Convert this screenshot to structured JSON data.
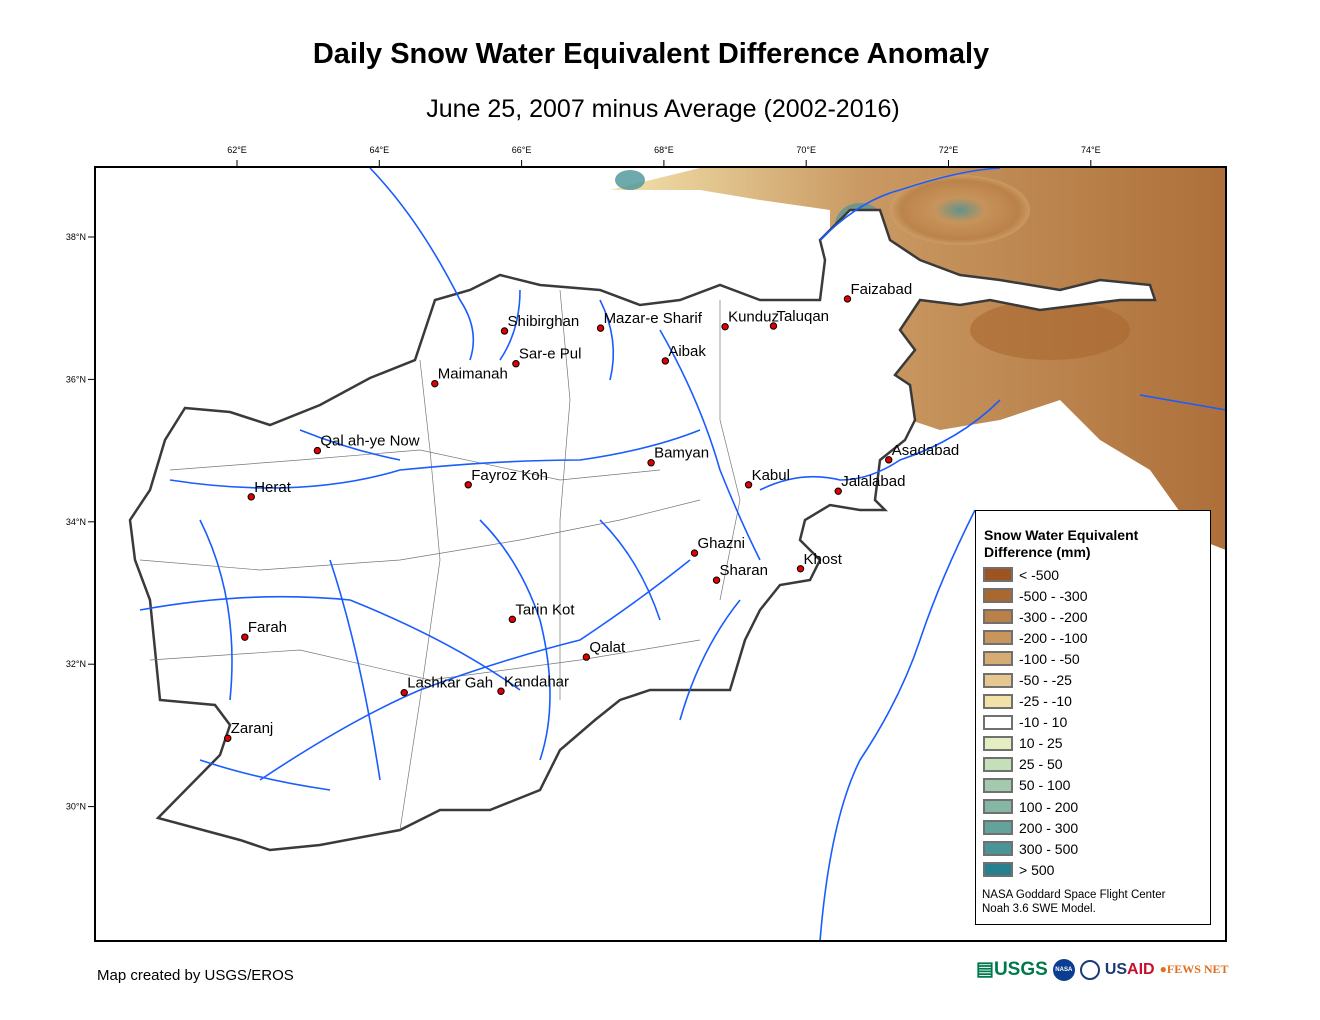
{
  "title": "Daily Snow Water Equivalent Difference Anomaly",
  "subtitle": "June 25, 2007 minus Average (2002-2016)",
  "axes": {
    "longitude_ticks": [
      {
        "value": 62,
        "label": "62°E"
      },
      {
        "value": 64,
        "label": "64°E"
      },
      {
        "value": 66,
        "label": "66°E"
      },
      {
        "value": 68,
        "label": "68°E"
      },
      {
        "value": 70,
        "label": "70°E"
      },
      {
        "value": 72,
        "label": "72°E"
      },
      {
        "value": 74,
        "label": "74°E"
      }
    ],
    "latitude_ticks": [
      {
        "value": 38,
        "label": "38°N"
      },
      {
        "value": 36,
        "label": "36°N"
      },
      {
        "value": 34,
        "label": "34°N"
      },
      {
        "value": 32,
        "label": "32°N"
      },
      {
        "value": 30,
        "label": "30°N"
      }
    ]
  },
  "cities": [
    {
      "name": "Shibirghan",
      "lon": 65.76,
      "lat": 36.68
    },
    {
      "name": "Mazar-e Sharif",
      "lon": 67.11,
      "lat": 36.72
    },
    {
      "name": "Kunduz",
      "lon": 68.86,
      "lat": 36.74
    },
    {
      "name": "Taluqan",
      "lon": 69.54,
      "lat": 36.75
    },
    {
      "name": "Faizabad",
      "lon": 70.58,
      "lat": 37.13
    },
    {
      "name": "Sar-e Pul",
      "lon": 65.92,
      "lat": 36.22
    },
    {
      "name": "Aibak",
      "lon": 68.02,
      "lat": 36.26
    },
    {
      "name": "Maimanah",
      "lon": 64.78,
      "lat": 35.94
    },
    {
      "name": "Qal ah-ye Now",
      "lon": 63.13,
      "lat": 35.0
    },
    {
      "name": "Bamyan",
      "lon": 67.82,
      "lat": 34.83
    },
    {
      "name": "Fayroz Koh",
      "lon": 65.25,
      "lat": 34.52
    },
    {
      "name": "Herat",
      "lon": 62.2,
      "lat": 34.35
    },
    {
      "name": "Kabul",
      "lon": 69.19,
      "lat": 34.52
    },
    {
      "name": "Asadabad",
      "lon": 71.16,
      "lat": 34.87
    },
    {
      "name": "Jalalabad",
      "lon": 70.45,
      "lat": 34.43
    },
    {
      "name": "Ghazni",
      "lon": 68.43,
      "lat": 33.56
    },
    {
      "name": "Khost",
      "lon": 69.92,
      "lat": 33.34
    },
    {
      "name": "Sharan",
      "lon": 68.74,
      "lat": 33.18
    },
    {
      "name": "Tarin Kot",
      "lon": 65.87,
      "lat": 32.63
    },
    {
      "name": "Farah",
      "lon": 62.11,
      "lat": 32.38
    },
    {
      "name": "Qalat",
      "lon": 66.91,
      "lat": 32.1
    },
    {
      "name": "Lashkar Gah",
      "lon": 64.35,
      "lat": 31.6
    },
    {
      "name": "Kandahar",
      "lon": 65.71,
      "lat": 31.62
    },
    {
      "name": "Zaranj",
      "lon": 61.87,
      "lat": 30.96
    }
  ],
  "colors": {
    "river": "#1a5cff",
    "border": "#3a3a3a",
    "city": "#e00000"
  },
  "legend": {
    "title_line1": "Snow Water Equivalent",
    "title_line2": "Difference (mm)",
    "items": [
      {
        "label": "< -500",
        "color": "#9c5420"
      },
      {
        "label": "-500 - -300",
        "color": "#a9682f"
      },
      {
        "label": "-300 - -200",
        "color": "#b98047"
      },
      {
        "label": "-200 - -100",
        "color": "#c8955c"
      },
      {
        "label": "-100 - -50",
        "color": "#d6ac74"
      },
      {
        "label": "-50 - -25",
        "color": "#e6c78f"
      },
      {
        "label": "-25 - -10",
        "color": "#f2e2a8"
      },
      {
        "label": "-10 - 10",
        "color": "#ffffff"
      },
      {
        "label": "10 - 25",
        "color": "#e3efc0"
      },
      {
        "label": "25 - 50",
        "color": "#c5dfb8"
      },
      {
        "label": "50 - 100",
        "color": "#a3c9ae"
      },
      {
        "label": "100 - 200",
        "color": "#85b7a4"
      },
      {
        "label": "200 - 300",
        "color": "#64a29c"
      },
      {
        "label": "300 - 500",
        "color": "#4a9498"
      },
      {
        "label": "> 500",
        "color": "#287f8e"
      }
    ],
    "credit_line1": "NASA Goddard Space Flight Center",
    "credit_line2": "Noah 3.6 SWE Model."
  },
  "footer": {
    "credit": "Map created by USGS/EROS"
  },
  "logos": {
    "usgs": "USGS",
    "nasa": "NASA",
    "usaid": "USAID",
    "fewsnet": "FEWS NET"
  }
}
